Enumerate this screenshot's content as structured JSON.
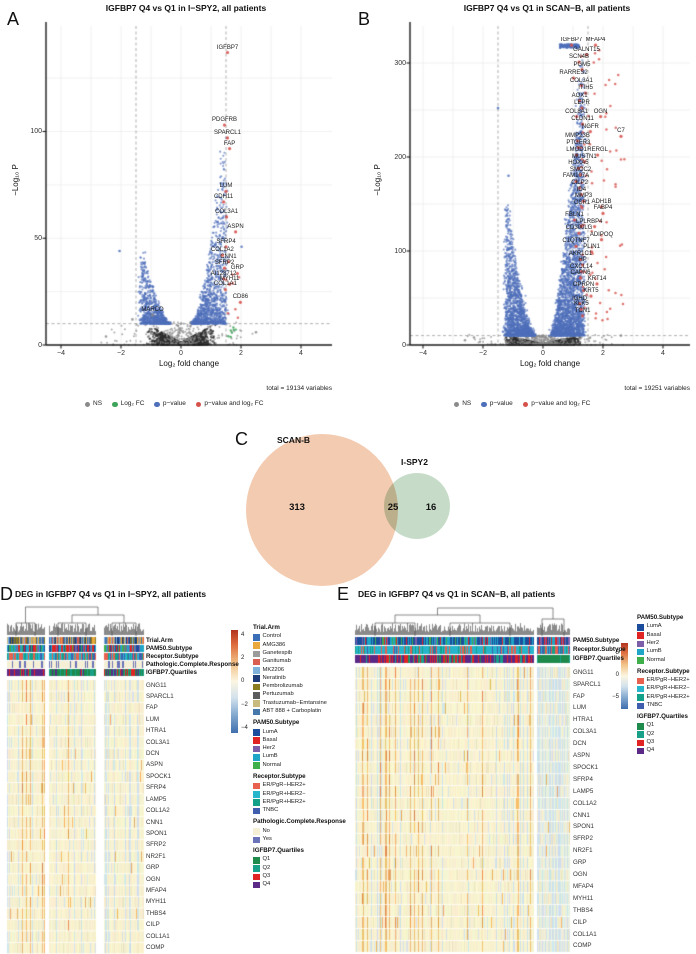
{
  "chart_data": [
    {
      "type": "scatter",
      "subtype": "volcano",
      "panel_letter": "A",
      "title": "IGFBP7 Q4 vs Q1 in I−SPY2, all patients",
      "xlabel": "Log₂ fold change",
      "ylabel": "−Log₁₀ P",
      "total_note": "total = 19134 variables",
      "xlim": [
        -4.6,
        4.9
      ],
      "ylim": [
        0,
        150
      ],
      "x_ticks": [
        -4,
        -2,
        0,
        2,
        4
      ],
      "y_ticks": [
        0,
        50,
        100
      ],
      "fc_threshold": 1.5,
      "p_threshold": 10,
      "grid": true,
      "legend": [
        {
          "label": "NS",
          "color": "#8a8a8a"
        },
        {
          "label": "Log₂ FC",
          "color": "#3fa45b"
        },
        {
          "label": "p−value",
          "color": "#4e6fba"
        },
        {
          "label": "p−value and log₂ FC",
          "color": "#d6504a"
        }
      ],
      "labeled_genes": [
        {
          "gene": "IGFBP7",
          "x": 1.55,
          "y": 137
        },
        {
          "gene": "PDGFRB",
          "x": 1.45,
          "y": 103
        },
        {
          "gene": "SPARCL1",
          "x": 1.55,
          "y": 97
        },
        {
          "gene": "FAP",
          "x": 1.62,
          "y": 92
        },
        {
          "gene": "LUM",
          "x": 1.5,
          "y": 72
        },
        {
          "gene": "CDH11",
          "x": 1.42,
          "y": 67
        },
        {
          "gene": "COL3A1",
          "x": 1.52,
          "y": 60
        },
        {
          "gene": "ASPN",
          "x": 1.82,
          "y": 53
        },
        {
          "gene": "SFRP4",
          "x": 1.5,
          "y": 46
        },
        {
          "gene": "COL1A2",
          "x": 1.38,
          "y": 42
        },
        {
          "gene": "CNN1",
          "x": 1.58,
          "y": 39
        },
        {
          "gene": "SFRP2",
          "x": 1.45,
          "y": 36
        },
        {
          "gene": "GRP",
          "x": 1.88,
          "y": 33.5
        },
        {
          "gene": "AI128712",
          "x": 1.42,
          "y": 31
        },
        {
          "gene": "MYH11",
          "x": 1.62,
          "y": 28.5
        },
        {
          "gene": "COL1A1",
          "x": 1.48,
          "y": 26
        },
        {
          "gene": "CD86",
          "x": 1.98,
          "y": 20
        },
        {
          "gene": "MARCO",
          "x": -0.95,
          "y": 14,
          "color": "gray"
        }
      ]
    },
    {
      "type": "scatter",
      "subtype": "volcano",
      "panel_letter": "B",
      "title": "IGFBP7 Q4 vs Q1 in SCAN−B, all patients",
      "xlabel": "Log₂ fold change",
      "ylabel": "−Log₁₀ P",
      "total_note": "total = 19251 variables",
      "xlim": [
        -4.6,
        4.9
      ],
      "ylim": [
        0,
        330
      ],
      "x_ticks": [
        -4,
        -2,
        0,
        2,
        4
      ],
      "y_ticks": [
        0,
        100,
        200,
        300
      ],
      "fc_threshold": 1.5,
      "p_threshold": 10,
      "grid": true,
      "legend": [
        {
          "label": "NS",
          "color": "#8a8a8a"
        },
        {
          "label": "p−value",
          "color": "#4e6fba"
        },
        {
          "label": "p−value and log₂ FC",
          "color": "#d6504a"
        }
      ],
      "labeled_genes": [
        {
          "gene": "IGFBP7",
          "x": 0.95,
          "y": 319
        },
        {
          "gene": "MFAP4",
          "x": 1.75,
          "y": 319
        },
        {
          "gene": "GALNT15",
          "x": 1.45,
          "y": 309
        },
        {
          "gene": "SCN4B",
          "x": 1.2,
          "y": 301
        },
        {
          "gene": "PGM5",
          "x": 1.3,
          "y": 293
        },
        {
          "gene": "RARRES2",
          "x": 1.02,
          "y": 284
        },
        {
          "gene": "COL3A1",
          "x": 1.28,
          "y": 276
        },
        {
          "gene": "ITIH5",
          "x": 1.42,
          "y": 268
        },
        {
          "gene": "AOX1",
          "x": 1.22,
          "y": 260
        },
        {
          "gene": "LEPR",
          "x": 1.3,
          "y": 252
        },
        {
          "gene": "COL8A1",
          "x": 1.12,
          "y": 243
        },
        {
          "gene": "OGN",
          "x": 1.92,
          "y": 243
        },
        {
          "gene": "CLDN11",
          "x": 1.32,
          "y": 235
        },
        {
          "gene": "NGFR",
          "x": 1.58,
          "y": 227
        },
        {
          "gene": "C7",
          "x": 2.6,
          "y": 222
        },
        {
          "gene": "MMP23B",
          "x": 1.15,
          "y": 217
        },
        {
          "gene": "PTGER3",
          "x": 1.18,
          "y": 210
        },
        {
          "gene": "LMOD1",
          "x": 1.12,
          "y": 202
        },
        {
          "gene": "RERGL",
          "x": 1.82,
          "y": 202
        },
        {
          "gene": "MUSTN1",
          "x": 1.38,
          "y": 195
        },
        {
          "gene": "HOXA5",
          "x": 1.18,
          "y": 188
        },
        {
          "gene": "SMOC2",
          "x": 1.25,
          "y": 181
        },
        {
          "gene": "FAM107A",
          "x": 1.1,
          "y": 174
        },
        {
          "gene": "CILP2",
          "x": 1.22,
          "y": 167
        },
        {
          "gene": "ID4",
          "x": 1.28,
          "y": 160
        },
        {
          "gene": "MMP3",
          "x": 1.35,
          "y": 153
        },
        {
          "gene": "OSR1",
          "x": 1.3,
          "y": 146
        },
        {
          "gene": "ADH1B",
          "x": 1.95,
          "y": 147
        },
        {
          "gene": "FABP4",
          "x": 2.0,
          "y": 140
        },
        {
          "gene": "FBLN1",
          "x": 1.05,
          "y": 133
        },
        {
          "gene": "LPL",
          "x": 1.28,
          "y": 126
        },
        {
          "gene": "RBP4",
          "x": 1.72,
          "y": 126
        },
        {
          "gene": "CD300LG",
          "x": 1.2,
          "y": 119
        },
        {
          "gene": "ADIPOQ",
          "x": 1.95,
          "y": 112
        },
        {
          "gene": "C1QTNF7",
          "x": 1.1,
          "y": 105
        },
        {
          "gene": "PLIN1",
          "x": 1.62,
          "y": 99
        },
        {
          "gene": "AKR1C1",
          "x": 1.25,
          "y": 91
        },
        {
          "gene": "HP",
          "x": 1.32,
          "y": 85
        },
        {
          "gene": "CXCL14",
          "x": 1.28,
          "y": 78
        },
        {
          "gene": "CAPN6",
          "x": 1.25,
          "y": 71
        },
        {
          "gene": "KRT14",
          "x": 1.8,
          "y": 65
        },
        {
          "gene": "OPRPN",
          "x": 1.35,
          "y": 58
        },
        {
          "gene": "KRT5",
          "x": 1.6,
          "y": 52
        },
        {
          "gene": "IGHD",
          "x": 1.22,
          "y": 44
        },
        {
          "gene": "KLK5",
          "x": 1.28,
          "y": 38
        },
        {
          "gene": "TCN1",
          "x": 1.32,
          "y": 31
        }
      ]
    },
    {
      "type": "venn",
      "panel_letter": "C",
      "left_label": "SCAN-B",
      "right_label": "I-SPY2",
      "left_count": "313",
      "overlap_count": "25",
      "right_count": "16",
      "left_color": "#f3cbb1",
      "right_color": "#c6dcc8"
    },
    {
      "type": "heatmap",
      "panel_letter": "D",
      "title": "DEG in IGFBP7 Q4 vs Q1 in I−SPY2, all patients",
      "annotation_rows": [
        "Trial.Arm",
        "PAM50.Subtype",
        "Receptor.Subtype",
        "Pathologic.Complete.Response",
        "IGFBP7.Quartiles"
      ],
      "genes": [
        "GNG11",
        "SPARCL1",
        "FAP",
        "LUM",
        "HTRA1",
        "COL3A1",
        "DCN",
        "ASPN",
        "SPOCK1",
        "SFRP4",
        "LAMP5",
        "COL1A2",
        "CNN1",
        "SPON1",
        "SFRP2",
        "NR2F1",
        "GRP",
        "OGN",
        "MFAP4",
        "MYH11",
        "THBS4",
        "CILP",
        "COL1A1",
        "COMP"
      ],
      "colorbar_ticks": [
        4,
        2,
        0,
        -2,
        -4
      ],
      "legend_groups": [
        {
          "title": "Trial.Arm",
          "items": [
            {
              "label": "Control",
              "color": "#3a6fb7"
            },
            {
              "label": "AMG386",
              "color": "#e9a93c"
            },
            {
              "label": "Ganetespib",
              "color": "#9b9b9b"
            },
            {
              "label": "Ganitumab",
              "color": "#d96050"
            },
            {
              "label": "MK2206",
              "color": "#7fb2d9"
            },
            {
              "label": "Neratinib",
              "color": "#1d3c78"
            },
            {
              "label": "Pembrolizumab",
              "color": "#8a7c20"
            },
            {
              "label": "Pertuzumab",
              "color": "#5c5c5c"
            },
            {
              "label": "Trastuzumab−Emtansine",
              "color": "#c9bb80"
            },
            {
              "label": "ABT 888 + Carboplatin",
              "color": "#4679a9"
            }
          ]
        },
        {
          "title": "PAM50.Subtype",
          "items": [
            {
              "label": "LumA",
              "color": "#1c4c9c"
            },
            {
              "label": "Basal",
              "color": "#e02424"
            },
            {
              "label": "Her2",
              "color": "#7c5fa8"
            },
            {
              "label": "LumB",
              "color": "#1fa6c6"
            },
            {
              "label": "Normal",
              "color": "#3faf4c"
            }
          ]
        },
        {
          "title": "Receptor.Subtype",
          "items": [
            {
              "label": "ER/PgR−HER2+",
              "color": "#e8604e"
            },
            {
              "label": "ER/PgR+HER2−",
              "color": "#27b5cc"
            },
            {
              "label": "ER/PgR+HER2+",
              "color": "#13a289"
            },
            {
              "label": "TNBC",
              "color": "#3f5fae"
            }
          ]
        },
        {
          "title": "Pathologic.Complete.Response",
          "items": [
            {
              "label": "No",
              "color": "#f5efd5"
            },
            {
              "label": "Yes",
              "color": "#6b74b8"
            }
          ]
        },
        {
          "title": "IGFBP7.Quartiles",
          "items": [
            {
              "label": "Q1",
              "color": "#1e8a4c"
            },
            {
              "label": "Q2",
              "color": "#18a089"
            },
            {
              "label": "Q3",
              "color": "#e02424"
            },
            {
              "label": "Q4",
              "color": "#5b2a86"
            }
          ]
        }
      ]
    },
    {
      "type": "heatmap",
      "panel_letter": "E",
      "title": "DEG in IGFBP7 Q4 vs Q1 in SCAN−B, all patients",
      "annotation_rows": [
        "PAM50.Subtype",
        "Receptor.Subtype",
        "IGFBP7.Quartiles"
      ],
      "genes": [
        "GNG11",
        "SPARCL1",
        "FAP",
        "LUM",
        "HTRA1",
        "COL3A1",
        "DCN",
        "ASPN",
        "SPOCK1",
        "SFRP4",
        "LAMP5",
        "COL1A2",
        "CNN1",
        "SPON1",
        "SFRP2",
        "NR2F1",
        "GRP",
        "OGN",
        "MFAP4",
        "MYH11",
        "THBS4",
        "CILP",
        "COL1A1",
        "COMP"
      ],
      "colorbar_ticks": [
        5,
        0,
        -5
      ],
      "legend_groups": [
        {
          "title": "PAM50.Subtype",
          "items": [
            {
              "label": "LumA",
              "color": "#1c4c9c"
            },
            {
              "label": "Basal",
              "color": "#e02424"
            },
            {
              "label": "Her2",
              "color": "#7c5fa8"
            },
            {
              "label": "LumB",
              "color": "#1fa6c6"
            },
            {
              "label": "Normal",
              "color": "#3faf4c"
            }
          ]
        },
        {
          "title": "Receptor.Subtype",
          "items": [
            {
              "label": "ER/PgR−HER2+",
              "color": "#e8604e"
            },
            {
              "label": "ER/PgR+HER2−",
              "color": "#27b5cc"
            },
            {
              "label": "ER/PgR+HER2+",
              "color": "#13a289"
            },
            {
              "label": "TNBC",
              "color": "#3f5fae"
            }
          ]
        },
        {
          "title": "IGFBP7.Quartiles",
          "items": [
            {
              "label": "Q1",
              "color": "#1e8a4c"
            },
            {
              "label": "Q2",
              "color": "#18a089"
            },
            {
              "label": "Q3",
              "color": "#e02424"
            },
            {
              "label": "Q4",
              "color": "#5b2a86"
            }
          ]
        }
      ]
    }
  ]
}
